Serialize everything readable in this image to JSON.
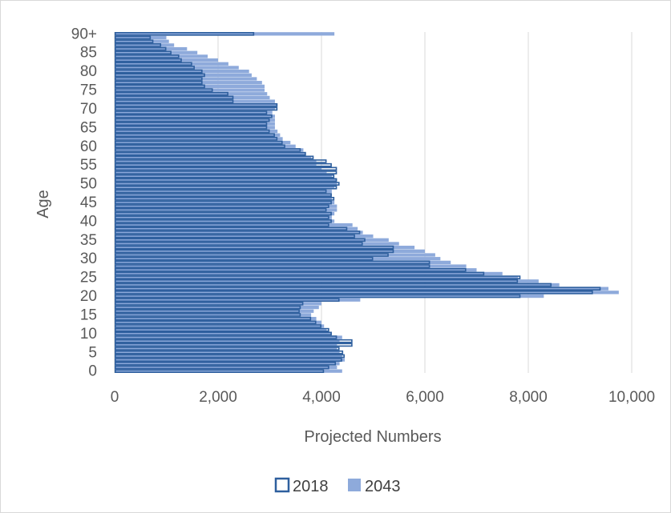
{
  "chart_data": {
    "type": "bar",
    "orientation": "horizontal",
    "xlabel": "Projected Numbers",
    "ylabel": "Age",
    "xlim": [
      0,
      10000
    ],
    "xticks": [
      0,
      2000,
      4000,
      6000,
      8000,
      10000
    ],
    "xtick_labels": [
      "0",
      "2,000",
      "4,000",
      "6,000",
      "8,000",
      "10,000"
    ],
    "ytick_labels": [
      "0",
      "5",
      "10",
      "15",
      "20",
      "25",
      "30",
      "35",
      "40",
      "45",
      "50",
      "55",
      "60",
      "65",
      "70",
      "75",
      "80",
      "85",
      "90+"
    ],
    "categories": [
      "0",
      "1",
      "2",
      "3",
      "4",
      "5",
      "6",
      "7",
      "8",
      "9",
      "10",
      "11",
      "12",
      "13",
      "14",
      "15",
      "16",
      "17",
      "18",
      "19",
      "20",
      "21",
      "22",
      "23",
      "24",
      "25",
      "26",
      "27",
      "28",
      "29",
      "30",
      "31",
      "32",
      "33",
      "34",
      "35",
      "36",
      "37",
      "38",
      "39",
      "40",
      "41",
      "42",
      "43",
      "44",
      "45",
      "46",
      "47",
      "48",
      "49",
      "50",
      "51",
      "52",
      "53",
      "54",
      "55",
      "56",
      "57",
      "58",
      "59",
      "60",
      "61",
      "62",
      "63",
      "64",
      "65",
      "66",
      "67",
      "68",
      "69",
      "70",
      "71",
      "72",
      "73",
      "74",
      "75",
      "76",
      "77",
      "78",
      "79",
      "80",
      "81",
      "82",
      "83",
      "84",
      "85",
      "86",
      "87",
      "88",
      "89",
      "90+"
    ],
    "grid": "vertical",
    "legend_position": "bottom",
    "series": [
      {
        "name": "2018",
        "style": "outline",
        "color": "#2e5f9e",
        "values": [
          4050,
          4150,
          4280,
          4400,
          4450,
          4420,
          4350,
          4600,
          4600,
          4300,
          4200,
          4150,
          4000,
          3900,
          3800,
          3600,
          3580,
          3600,
          3650,
          4350,
          7850,
          9250,
          9400,
          8450,
          7800,
          7850,
          7150,
          6800,
          6100,
          6100,
          5000,
          5300,
          5400,
          5400,
          4800,
          4850,
          4650,
          4750,
          4500,
          4150,
          4200,
          4150,
          4200,
          4100,
          4150,
          4200,
          4250,
          4200,
          4100,
          4300,
          4350,
          4300,
          4250,
          4300,
          4300,
          4200,
          4100,
          3850,
          3700,
          3600,
          3300,
          3250,
          3150,
          3100,
          3000,
          2950,
          2950,
          3000,
          3050,
          2950,
          3150,
          3150,
          2300,
          2300,
          2200,
          1900,
          1750,
          1700,
          1700,
          1750,
          1700,
          1550,
          1500,
          1300,
          1250,
          1100,
          1000,
          900,
          750,
          700,
          2700
        ]
      },
      {
        "name": "2043",
        "style": "fill",
        "color": "#8eaadb",
        "values": [
          4400,
          4300,
          4350,
          4450,
          4400,
          4350,
          4300,
          4300,
          4350,
          4400,
          4200,
          4100,
          4050,
          4000,
          3900,
          3800,
          3850,
          3950,
          4000,
          4750,
          8300,
          9750,
          9550,
          8600,
          8200,
          7800,
          7500,
          7000,
          6800,
          6500,
          6300,
          6200,
          6000,
          5800,
          5500,
          5300,
          5000,
          4800,
          4700,
          4600,
          4250,
          4200,
          4250,
          4300,
          4300,
          4250,
          4200,
          4200,
          4200,
          4250,
          4300,
          4300,
          4200,
          4100,
          4000,
          3900,
          3900,
          3800,
          3700,
          3650,
          3500,
          3400,
          3250,
          3200,
          3150,
          3100,
          3100,
          3100,
          3100,
          3050,
          3100,
          3150,
          3100,
          3000,
          2950,
          2900,
          2900,
          2850,
          2750,
          2650,
          2600,
          2400,
          2200,
          2000,
          1800,
          1600,
          1400,
          1150,
          1050,
          1000,
          4250
        ]
      }
    ]
  }
}
